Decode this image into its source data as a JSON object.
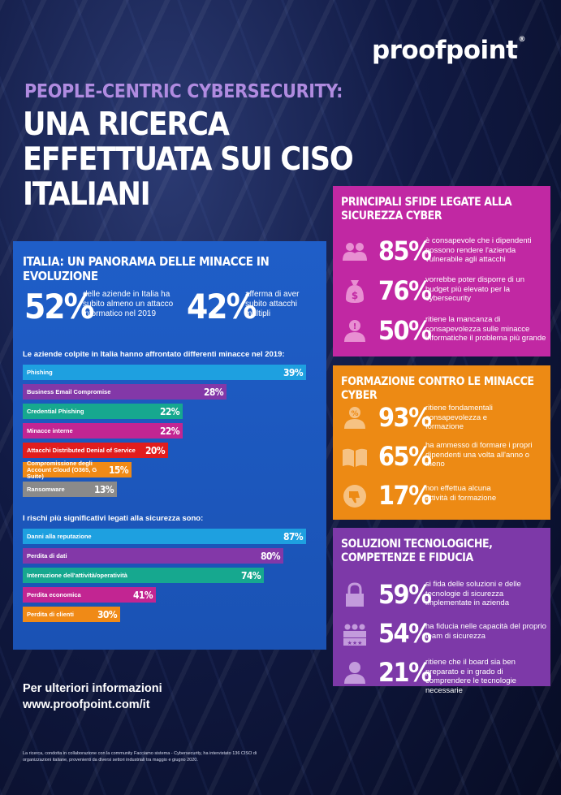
{
  "brand": {
    "logo_text": "proofpoint",
    "reg": "®"
  },
  "header": {
    "eyebrow": "PEOPLE-CENTRIC CYBERSECURITY:",
    "title": "UNA RICERCA EFFETTUATA SUI CISO ITALIANI"
  },
  "italia": {
    "title": "ITALIA: UN PANORAMA DELLE MINACCE IN EVOLUZIONE",
    "stat1_value": "52%",
    "stat1_text": "delle aziende in Italia ha subito almeno un attacco informatico nel 2019",
    "stat2_value": "42%",
    "stat2_text": "afferma di aver subito attacchi multipli",
    "threats_title": "Le aziende colpite in Italia hanno affrontato differenti minacce nel 2019:",
    "risks_title": "I rischi più significativi legati alla sicurezza sono:"
  },
  "chart_data": [
    {
      "type": "bar",
      "title": "Le aziende colpite in Italia hanno affrontato differenti minacce nel 2019:",
      "categories": [
        "Phishing",
        "Business Email Compromise",
        "Credential Phishing",
        "Minacce interne",
        "Attacchi Distributed Denial of Service",
        "Compromissione degli Account Cloud (O365, G Suite)",
        "Ransomware"
      ],
      "values": [
        39,
        28,
        22,
        22,
        20,
        15,
        13
      ],
      "labels": [
        "39%",
        "28%",
        "22%",
        "22%",
        "20%",
        "15%",
        "13%"
      ],
      "colors": [
        "#1ea0e0",
        "#8338a8",
        "#16a88f",
        "#c22592",
        "#e11d1d",
        "#f08a16",
        "#8a8a8a"
      ],
      "xlim": [
        0,
        39
      ]
    },
    {
      "type": "bar",
      "title": "I rischi più significativi legati alla sicurezza sono:",
      "categories": [
        "Danni alla reputazione",
        "Perdita di dati",
        "Interruzione dell'attività/operatività",
        "Perdita economica",
        "Perdita di clienti"
      ],
      "values": [
        87,
        80,
        74,
        41,
        30
      ],
      "labels": [
        "87%",
        "80%",
        "74%",
        "41%",
        "30%"
      ],
      "colors": [
        "#1ea0e0",
        "#8338a8",
        "#16a88f",
        "#c22592",
        "#f08a16"
      ],
      "xlim": [
        0,
        87
      ]
    }
  ],
  "sfide": {
    "title": "PRINCIPALI SFIDE LEGATE ALLA SICUREZZA CYBER",
    "items": [
      {
        "value": "85%",
        "text": "è consapevole che i dipendenti possono rendere l'azienda vulnerabile agli attacchi",
        "icon": "people-icon"
      },
      {
        "value": "76%",
        "text": "vorrebbe poter disporre di un budget più elevato per la cybersecurity",
        "icon": "money-bag-icon"
      },
      {
        "value": "50%",
        "text": "ritiene la mancanza di consapevolezza sulle minacce informatiche il problema più grande",
        "icon": "person-alert-icon"
      }
    ]
  },
  "formazione": {
    "title": "FORMAZIONE CONTRO LE MINACCE CYBER",
    "items": [
      {
        "value": "93%",
        "text": "ritiene fondamentali consapevolezza e formazione",
        "icon": "person-percent-icon"
      },
      {
        "value": "65%",
        "text": "ha ammesso di formare i propri dipendenti una volta all'anno o meno",
        "icon": "book-icon"
      },
      {
        "value": "17%",
        "text": "non effettua alcuna attività di formazione",
        "icon": "thumbs-down-icon"
      }
    ]
  },
  "soluzioni": {
    "title": "SOLUZIONI TECNOLOGICHE, COMPETENZE E FIDUCIA",
    "items": [
      {
        "value": "59%",
        "text": "si fida delle soluzioni e delle tecnologie di sicurezza implementate in azienda",
        "icon": "padlock-icon"
      },
      {
        "value": "54%",
        "text": "ha fiducia nelle capacità del proprio team di sicurezza",
        "icon": "team-stars-icon"
      },
      {
        "value": "21%",
        "text": "ritiene che il board sia ben preparato e in grado di comprendere le tecnologie necessarie",
        "icon": "person-icon"
      }
    ]
  },
  "footer": {
    "info": "Per ulteriori informazioni",
    "url": "www.proofpoint.com/it",
    "note": "La ricerca, condotta in collaborazione con la community Facciamo sistema - Cybersecurity, ha intervistato 136 CISO di organizzazioni italiane, provenienti da diversi settori industriali tra maggio e giugno 2020."
  }
}
